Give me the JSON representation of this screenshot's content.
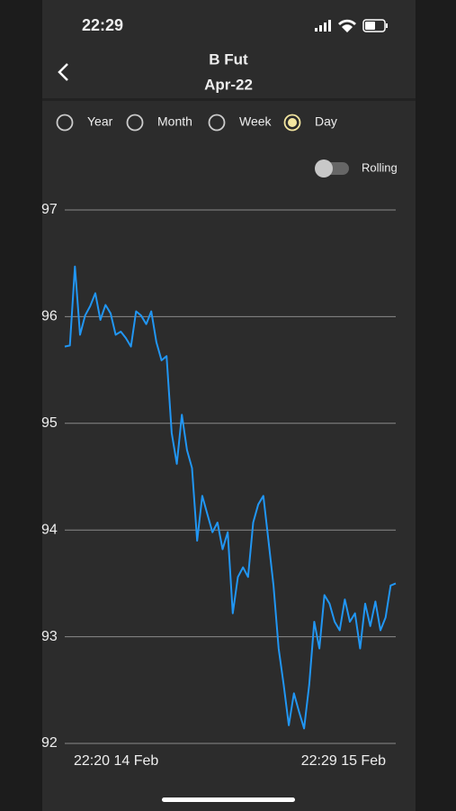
{
  "status_bar": {
    "time": "22:29"
  },
  "header": {
    "title": "B Fut",
    "subtitle": "Apr-22"
  },
  "options": {
    "items": [
      "Year",
      "Month",
      "Week",
      "Day"
    ],
    "selected": 3
  },
  "toggle": {
    "label": "Rolling",
    "on": false
  },
  "chart_data": {
    "type": "line",
    "categories": [
      "22:20 14 Feb",
      null,
      null,
      null,
      null,
      null,
      null,
      null,
      null,
      null,
      null,
      null,
      null,
      null,
      null,
      null,
      null,
      null,
      null,
      null,
      null,
      null,
      null,
      null,
      null,
      null,
      null,
      null,
      null,
      null,
      null,
      null,
      null,
      null,
      null,
      null,
      null,
      null,
      null,
      null,
      null,
      null,
      null,
      null,
      null,
      null,
      null,
      null,
      null,
      null,
      null,
      null,
      null,
      null,
      null,
      null,
      null,
      null,
      null,
      null,
      null,
      null,
      null,
      null,
      null,
      "22:29 15 Feb"
    ],
    "values": [
      95.72,
      95.73,
      96.47,
      95.83,
      96.01,
      96.1,
      96.22,
      95.97,
      96.11,
      96.03,
      95.83,
      95.86,
      95.8,
      95.72,
      96.05,
      96.01,
      95.93,
      96.05,
      95.76,
      95.59,
      95.63,
      94.91,
      94.62,
      95.08,
      94.75,
      94.58,
      93.9,
      94.32,
      94.15,
      93.98,
      94.07,
      93.82,
      93.98,
      93.22,
      93.56,
      93.65,
      93.56,
      94.07,
      94.24,
      94.32,
      93.9,
      93.48,
      92.89,
      92.55,
      92.17,
      92.47,
      92.3,
      92.14,
      92.55,
      93.14,
      92.89,
      93.39,
      93.31,
      93.14,
      93.06,
      93.35,
      93.14,
      93.22,
      92.89,
      93.31,
      93.1,
      93.33,
      93.06,
      93.18,
      93.48,
      93.5
    ],
    "color": "#2196f3",
    "ylim": [
      92,
      97
    ],
    "yticks": [
      92,
      93,
      94,
      95,
      96,
      97
    ],
    "grid": true
  }
}
